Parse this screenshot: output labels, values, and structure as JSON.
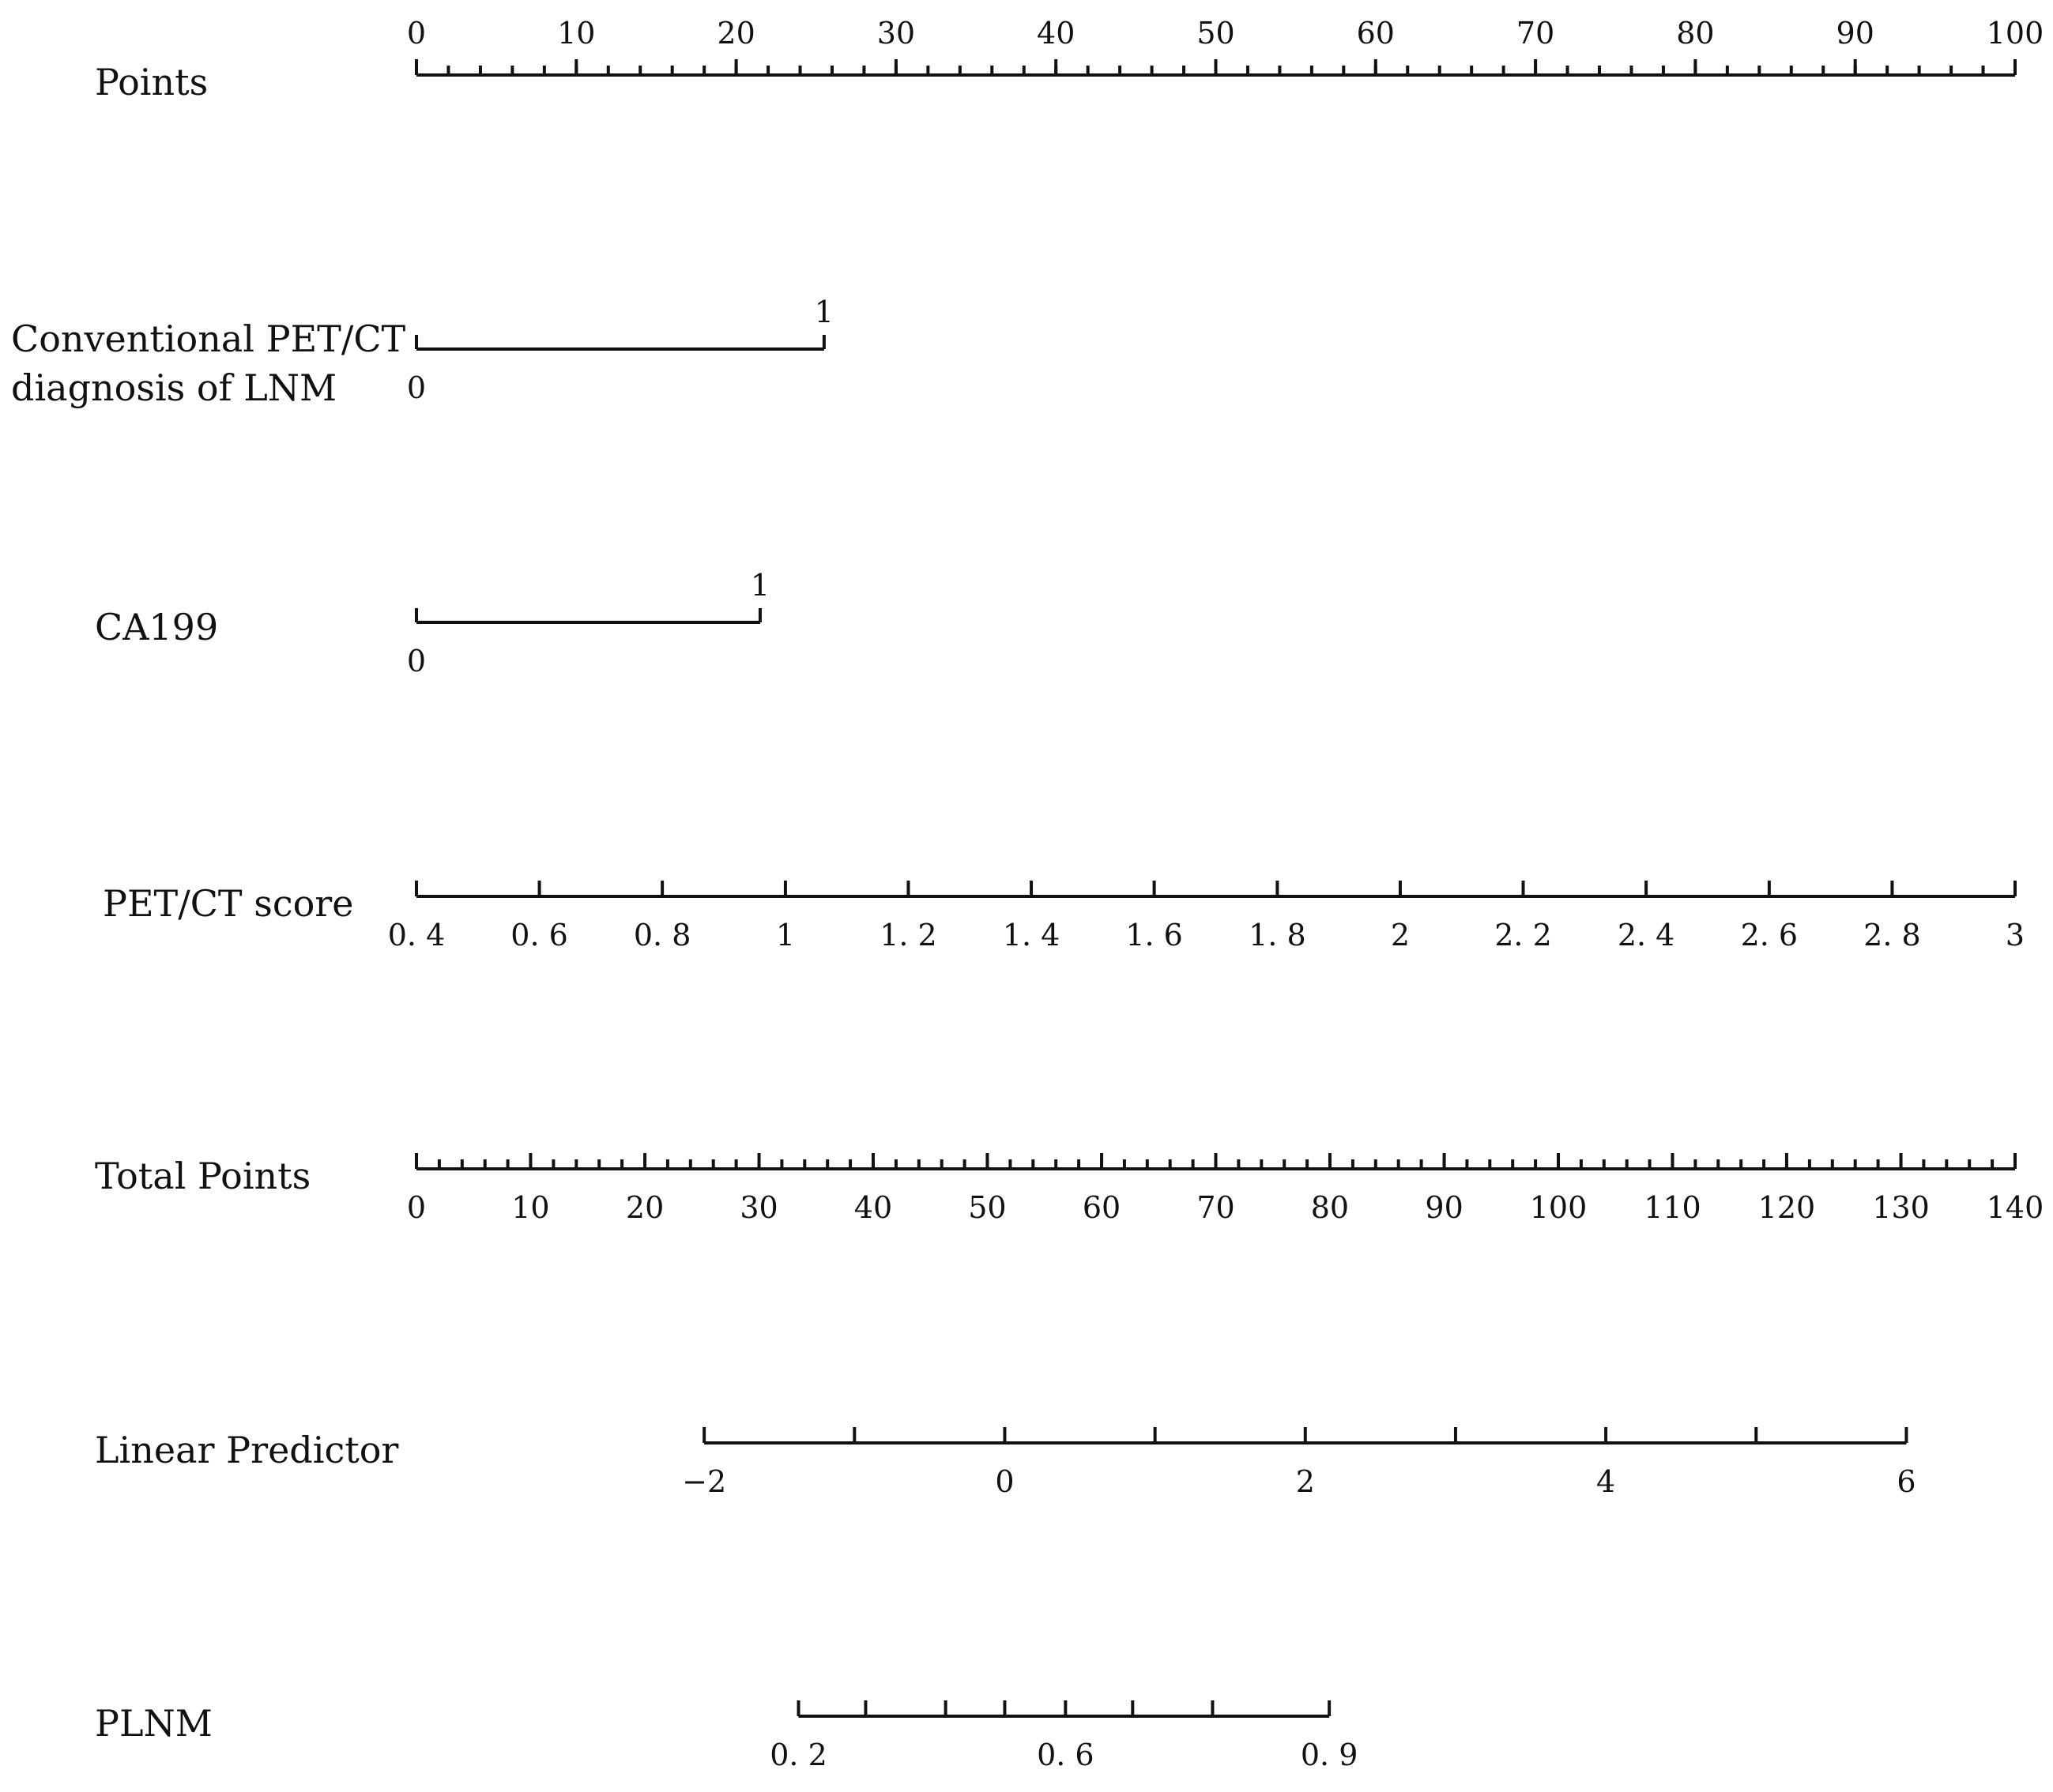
{
  "chart_data": {
    "type": "nomogram",
    "rows": [
      {
        "label_lines": [
          "Points"
        ],
        "ticks": [
          0,
          10,
          20,
          30,
          40,
          50,
          60,
          70,
          80,
          90,
          100
        ],
        "tick_labels": [
          "0",
          "10",
          "20",
          "30",
          "40",
          "50",
          "60",
          "70",
          "80",
          "90",
          "100"
        ],
        "points_at_ticks": [
          0,
          10,
          20,
          30,
          40,
          50,
          60,
          70,
          80,
          90,
          100
        ],
        "minor_step": 2,
        "label_side": "above"
      },
      {
        "label_lines": [
          "Conventional PET/CT",
          "diagnosis of LNM"
        ],
        "ticks": [
          0,
          1
        ],
        "tick_labels": [
          "0",
          "1"
        ],
        "points_at_ticks": [
          0,
          25.5
        ],
        "categorical": true
      },
      {
        "label_lines": [
          "CA199"
        ],
        "ticks": [
          0,
          1
        ],
        "tick_labels": [
          "0",
          "1"
        ],
        "points_at_ticks": [
          0,
          21.5
        ],
        "categorical": true
      },
      {
        "label_lines": [
          "PET/CT score"
        ],
        "ticks": [
          0.4,
          0.6,
          0.8,
          1,
          1.2,
          1.4,
          1.6,
          1.8,
          2,
          2.2,
          2.4,
          2.6,
          2.8,
          3
        ],
        "tick_labels": [
          "0. 4",
          "0. 6",
          "0. 8",
          "1",
          "1. 2",
          "1. 4",
          "1. 6",
          "1. 8",
          "2",
          "2. 2",
          "2. 4",
          "2. 6",
          "2. 8",
          "3"
        ],
        "points_at_ticks": [
          0,
          7.69,
          15.38,
          23.08,
          30.77,
          38.46,
          46.15,
          53.85,
          61.54,
          69.23,
          76.92,
          84.62,
          92.31,
          100
        ],
        "label_side": "below"
      },
      {
        "label_lines": [
          "Total Points"
        ],
        "ticks": [
          0,
          10,
          20,
          30,
          40,
          50,
          60,
          70,
          80,
          90,
          100,
          110,
          120,
          130,
          140
        ],
        "tick_labels": [
          "0",
          "10",
          "20",
          "30",
          "40",
          "50",
          "60",
          "70",
          "80",
          "90",
          "100",
          "110",
          "120",
          "130",
          "140"
        ],
        "points_at_ticks": [
          0,
          7.14,
          14.29,
          21.43,
          28.57,
          35.71,
          42.86,
          50,
          57.14,
          64.29,
          71.43,
          78.57,
          85.71,
          92.86,
          100
        ],
        "minor_step": 2,
        "label_side": "below"
      },
      {
        "label_lines": [
          "Linear Predictor"
        ],
        "ticks": [
          -2,
          -1,
          0,
          1,
          2,
          3,
          4,
          5,
          6
        ],
        "tick_labels": [
          "−2",
          "",
          "0",
          "",
          "2",
          "",
          "4",
          "",
          "6"
        ],
        "points_at_ticks": [
          18.0,
          27.4,
          36.8,
          46.2,
          55.6,
          65.0,
          74.4,
          83.8,
          93.2
        ],
        "label_side": "below"
      },
      {
        "label_lines": [
          "PLNM"
        ],
        "ticks": [
          0.2,
          0.3,
          0.4,
          0.5,
          0.6,
          0.7,
          0.8,
          0.9
        ],
        "tick_labels": [
          "0. 2",
          "",
          "",
          "",
          "0. 6",
          "",
          "",
          "0. 9"
        ],
        "points_at_ticks": [
          23.9,
          28.1,
          33.1,
          36.8,
          40.6,
          44.8,
          49.8,
          57.1
        ],
        "label_side": "below"
      }
    ]
  }
}
